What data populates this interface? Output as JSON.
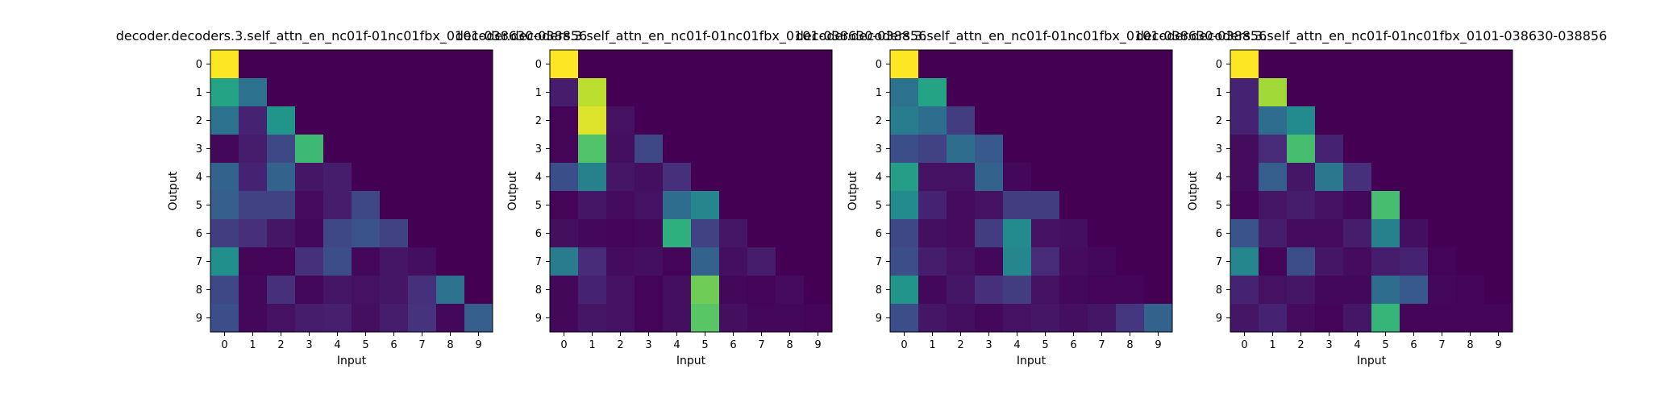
{
  "chart_data": [
    {
      "type": "heatmap",
      "title": "decoder.decoders.3.self_attn_en_nc01f-01nc01fbx_0101-038630-038856",
      "xlabel": "Input",
      "ylabel": "Output",
      "x_ticks": [
        "0",
        "1",
        "2",
        "3",
        "4",
        "5",
        "6",
        "7",
        "8",
        "9"
      ],
      "y_ticks": [
        "0",
        "1",
        "2",
        "3",
        "4",
        "5",
        "6",
        "7",
        "8",
        "9"
      ],
      "colormap": "viridis",
      "vmin": 0,
      "vmax": 1,
      "values": [
        [
          1.0,
          0,
          0,
          0,
          0,
          0,
          0,
          0,
          0,
          0
        ],
        [
          0.58,
          0.38,
          0,
          0,
          0,
          0,
          0,
          0,
          0,
          0
        ],
        [
          0.38,
          0.1,
          0.52,
          0,
          0,
          0,
          0,
          0,
          0,
          0
        ],
        [
          0.02,
          0.08,
          0.22,
          0.68,
          0,
          0,
          0,
          0,
          0,
          0
        ],
        [
          0.32,
          0.1,
          0.32,
          0.06,
          0.08,
          0,
          0,
          0,
          0,
          0
        ],
        [
          0.3,
          0.2,
          0.2,
          0.03,
          0.08,
          0.22,
          0,
          0,
          0,
          0
        ],
        [
          0.18,
          0.14,
          0.06,
          0.02,
          0.22,
          0.26,
          0.2,
          0,
          0,
          0
        ],
        [
          0.5,
          0.01,
          0.01,
          0.14,
          0.24,
          0.02,
          0.06,
          0.04,
          0,
          0
        ],
        [
          0.22,
          0.02,
          0.14,
          0.02,
          0.06,
          0.05,
          0.06,
          0.14,
          0.38,
          0
        ],
        [
          0.24,
          0.02,
          0.05,
          0.08,
          0.09,
          0.04,
          0.08,
          0.15,
          0.02,
          0.3
        ]
      ]
    },
    {
      "type": "heatmap",
      "title": "decoder.decoders.3.self_attn_en_nc01f-01nc01fbx_0101-038630-038856",
      "xlabel": "Input",
      "ylabel": "Output",
      "x_ticks": [
        "0",
        "1",
        "2",
        "3",
        "4",
        "5",
        "6",
        "7",
        "8",
        "9"
      ],
      "y_ticks": [
        "0",
        "1",
        "2",
        "3",
        "4",
        "5",
        "6",
        "7",
        "8",
        "9"
      ],
      "colormap": "viridis",
      "vmin": 0,
      "vmax": 1,
      "values": [
        [
          1.0,
          0,
          0,
          0,
          0,
          0,
          0,
          0,
          0,
          0
        ],
        [
          0.08,
          0.9,
          0,
          0,
          0,
          0,
          0,
          0,
          0,
          0
        ],
        [
          0.01,
          0.95,
          0.05,
          0,
          0,
          0,
          0,
          0,
          0,
          0
        ],
        [
          0.01,
          0.72,
          0.04,
          0.22,
          0,
          0,
          0,
          0,
          0,
          0
        ],
        [
          0.24,
          0.44,
          0.06,
          0.04,
          0.14,
          0,
          0,
          0,
          0,
          0
        ],
        [
          0.01,
          0.06,
          0.03,
          0.05,
          0.36,
          0.46,
          0,
          0,
          0,
          0
        ],
        [
          0.04,
          0.02,
          0.01,
          0.02,
          0.64,
          0.2,
          0.06,
          0,
          0,
          0
        ],
        [
          0.42,
          0.12,
          0.03,
          0.04,
          0.01,
          0.32,
          0.04,
          0.08,
          0,
          0
        ],
        [
          0.02,
          0.1,
          0.05,
          0.01,
          0.04,
          0.78,
          0.02,
          0.01,
          0.03,
          0
        ],
        [
          0.02,
          0.06,
          0.05,
          0.01,
          0.04,
          0.74,
          0.04,
          0.02,
          0.02,
          0.01
        ]
      ]
    },
    {
      "type": "heatmap",
      "title": "decoder.decoders.3.self_attn_en_nc01f-01nc01fbx_0101-038630-038856",
      "xlabel": "Input",
      "ylabel": "Output",
      "x_ticks": [
        "0",
        "1",
        "2",
        "3",
        "4",
        "5",
        "6",
        "7",
        "8",
        "9"
      ],
      "y_ticks": [
        "0",
        "1",
        "2",
        "3",
        "4",
        "5",
        "6",
        "7",
        "8",
        "9"
      ],
      "colormap": "viridis",
      "vmin": 0,
      "vmax": 1,
      "values": [
        [
          1.0,
          0,
          0,
          0,
          0,
          0,
          0,
          0,
          0,
          0
        ],
        [
          0.38,
          0.58,
          0,
          0,
          0,
          0,
          0,
          0,
          0,
          0
        ],
        [
          0.42,
          0.36,
          0.18,
          0,
          0,
          0,
          0,
          0,
          0,
          0
        ],
        [
          0.24,
          0.2,
          0.36,
          0.28,
          0,
          0,
          0,
          0,
          0,
          0
        ],
        [
          0.56,
          0.05,
          0.05,
          0.32,
          0.02,
          0,
          0,
          0,
          0,
          0
        ],
        [
          0.48,
          0.1,
          0.03,
          0.05,
          0.18,
          0.18,
          0,
          0,
          0,
          0
        ],
        [
          0.22,
          0.04,
          0.03,
          0.18,
          0.48,
          0.05,
          0.04,
          0,
          0,
          0
        ],
        [
          0.24,
          0.08,
          0.05,
          0.02,
          0.46,
          0.12,
          0.03,
          0.02,
          0,
          0
        ],
        [
          0.52,
          0.02,
          0.06,
          0.14,
          0.18,
          0.05,
          0.02,
          0.01,
          0.01,
          0
        ],
        [
          0.24,
          0.06,
          0.04,
          0.02,
          0.05,
          0.06,
          0.04,
          0.06,
          0.16,
          0.32
        ]
      ]
    },
    {
      "type": "heatmap",
      "title": "decoder.decoders.3.self_attn_en_nc01f-01nc01fbx_0101-038630-038856",
      "xlabel": "Input",
      "ylabel": "Output",
      "x_ticks": [
        "0",
        "1",
        "2",
        "3",
        "4",
        "5",
        "6",
        "7",
        "8",
        "9"
      ],
      "y_ticks": [
        "0",
        "1",
        "2",
        "3",
        "4",
        "5",
        "6",
        "7",
        "8",
        "9"
      ],
      "colormap": "viridis",
      "vmin": 0,
      "vmax": 1,
      "values": [
        [
          1.0,
          0,
          0,
          0,
          0,
          0,
          0,
          0,
          0,
          0
        ],
        [
          0.1,
          0.86,
          0,
          0,
          0,
          0,
          0,
          0,
          0,
          0
        ],
        [
          0.1,
          0.36,
          0.48,
          0,
          0,
          0,
          0,
          0,
          0,
          0
        ],
        [
          0.03,
          0.12,
          0.7,
          0.1,
          0,
          0,
          0,
          0,
          0,
          0
        ],
        [
          0.03,
          0.3,
          0.06,
          0.4,
          0.14,
          0,
          0,
          0,
          0,
          0
        ],
        [
          0.01,
          0.06,
          0.08,
          0.05,
          0.02,
          0.7,
          0,
          0,
          0,
          0
        ],
        [
          0.26,
          0.08,
          0.03,
          0.03,
          0.08,
          0.44,
          0.04,
          0,
          0,
          0
        ],
        [
          0.46,
          0.01,
          0.24,
          0.06,
          0.03,
          0.08,
          0.1,
          0.01,
          0,
          0
        ],
        [
          0.1,
          0.05,
          0.06,
          0.02,
          0.02,
          0.36,
          0.28,
          0.02,
          0.01,
          0
        ],
        [
          0.06,
          0.1,
          0.03,
          0.01,
          0.06,
          0.66,
          0.01,
          0.01,
          0.01,
          0.01
        ]
      ]
    }
  ]
}
